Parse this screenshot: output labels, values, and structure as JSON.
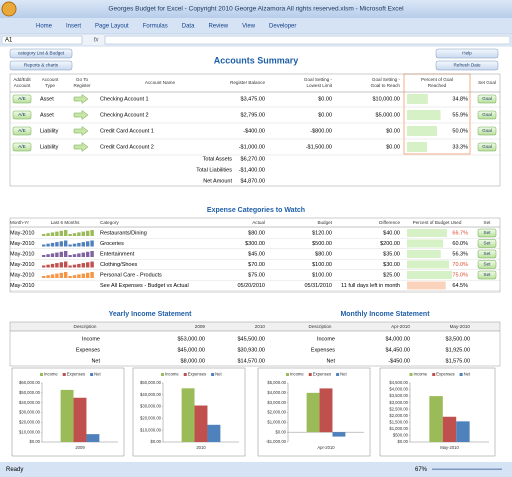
{
  "window_title": "Georges Budget for Excel - Copyright 2010  George Alzamora  All rights reserved.xlsm - Microsoft Excel",
  "tabs": [
    "Home",
    "Insert",
    "Page Layout",
    "Formulas",
    "Data",
    "Review",
    "View",
    "Developer"
  ],
  "name_box": "A1",
  "fx": "fx",
  "buttons": {
    "category_list": "category List & Budget",
    "reports": "Reports & charts",
    "help": "Help",
    "refresh": "Refresh Date"
  },
  "accounts": {
    "title": "Accounts Summary",
    "headers": [
      [
        "Add/Edit",
        "Account"
      ],
      [
        "Account",
        "Type"
      ],
      [
        "Go To",
        "Register"
      ],
      [
        "Account Name"
      ],
      [
        "Register Balance"
      ],
      [
        "Goal Setting -",
        "Lowest Limit"
      ],
      [
        "Goal Setting -",
        "Goal to Reach"
      ],
      [
        "Percent of Goal",
        "Reached"
      ],
      [
        "Set Goal"
      ]
    ],
    "rows": [
      {
        "edit": "A/E",
        "type": "Asset",
        "name": "Checking Account 1",
        "balance": "$3,475.00",
        "lowest": "$0.00",
        "goal": "$10,000.00",
        "pct": 34.8,
        "pct_label": "34.8%",
        "set": "Goal"
      },
      {
        "edit": "A/E",
        "type": "Asset",
        "name": "Checking Account 2",
        "balance": "$2,795.00",
        "lowest": "$0.00",
        "goal": "$5,000.00",
        "pct": 55.9,
        "pct_label": "55.9%",
        "set": "Goal"
      },
      {
        "edit": "A/E",
        "type": "Liability",
        "name": "Credit Card Account 1",
        "balance": "-$400.00",
        "lowest": "-$800.00",
        "goal": "$0.00",
        "pct": 50.0,
        "pct_label": "50.0%",
        "set": "Goal"
      },
      {
        "edit": "A/E",
        "type": "Liability",
        "name": "Credit Card Account 2",
        "balance": "-$1,000.00",
        "lowest": "-$1,500.00",
        "goal": "$0.00",
        "pct": 33.3,
        "pct_label": "33.3%",
        "set": "Goal"
      }
    ],
    "totals": [
      [
        "Total Assets",
        "$6,270.00"
      ],
      [
        "Total Liabilities",
        "-$1,400.00"
      ],
      [
        "Net Amount",
        "$4,870.00"
      ]
    ]
  },
  "expenses": {
    "title": "Expense Categories to Watch",
    "headers": [
      "Month-Yr",
      "Last 6 Months",
      "Category",
      "Actual",
      "Budget",
      "Difference",
      "Percent of Budget Used",
      "Set"
    ],
    "rows": [
      {
        "month": "May-2010",
        "category": "Restaurants/Dining",
        "actual": "$80.00",
        "budget": "$120.00",
        "difference": "$40.00",
        "pct": 66.7,
        "pct_label": "66.7%",
        "set": "Set"
      },
      {
        "month": "May-2010",
        "category": "Groceries",
        "actual": "$300.00",
        "budget": "$500.00",
        "difference": "$200.00",
        "pct": 60.0,
        "pct_label": "60.0%",
        "set": "Set"
      },
      {
        "month": "May-2010",
        "category": "Entertainment",
        "actual": "$45.00",
        "budget": "$80.00",
        "difference": "$35.00",
        "pct": 56.3,
        "pct_label": "56.3%",
        "set": "Set"
      },
      {
        "month": "May-2010",
        "category": "Clothing/Shoes",
        "actual": "$70.00",
        "budget": "$100.00",
        "difference": "$30.00",
        "pct": 70.0,
        "pct_label": "70.0%",
        "set": "Set"
      },
      {
        "month": "May-2010",
        "category": "Personal Care - Products",
        "actual": "$75.00",
        "budget": "$100.00",
        "difference": "$25.00",
        "pct": 75.0,
        "pct_label": "75.0%",
        "set": "Set"
      },
      {
        "month": "May-2010",
        "category": "See All Expenses - Budget vs Actual",
        "actual": "05/20/2010",
        "budget": "05/31/2010",
        "difference": "11 full days left in month",
        "pct": 64.5,
        "pct_label": "64.5%"
      }
    ]
  },
  "yearly": {
    "title": "Yearly Income Statement",
    "headers": [
      "Description",
      "2009",
      "2010"
    ],
    "rows": [
      [
        "Income",
        "$53,000.00",
        "$45,500.00"
      ],
      [
        "Expenses",
        "$45,000.00",
        "$30,930.00"
      ],
      [
        "Net",
        "$8,000.00",
        "$14,570.00"
      ]
    ]
  },
  "monthly": {
    "title": "Monthly Income Statement",
    "headers": [
      "Description",
      "Apr-2010",
      "May-2010"
    ],
    "rows": [
      [
        "Income",
        "$4,000.00",
        "$3,500.00"
      ],
      [
        "Expenses",
        "$4,450.00",
        "$1,925.00"
      ],
      [
        "Net",
        "-$450.00",
        "$1,575.00"
      ]
    ]
  },
  "status": {
    "ready": "Ready",
    "zoom": "67%"
  },
  "chart_data": [
    {
      "type": "bar",
      "categories": [
        "2009"
      ],
      "series": [
        {
          "name": "Income",
          "color": "#9bbb59",
          "values": [
            53000
          ]
        },
        {
          "name": "Expenses",
          "color": "#c0504d",
          "values": [
            45000
          ]
        },
        {
          "name": "Net",
          "color": "#4f81bd",
          "values": [
            8000
          ]
        }
      ],
      "ylim": [
        0,
        60000
      ],
      "yticks": [
        {
          "value": 0,
          "label": "$0.00"
        },
        {
          "value": 10000,
          "label": "$10,000.00"
        },
        {
          "value": 20000,
          "label": "$20,000.00"
        },
        {
          "value": 30000,
          "label": "$30,000.00"
        },
        {
          "value": 40000,
          "label": "$40,000.00"
        },
        {
          "value": 50000,
          "label": "$50,000.00"
        },
        {
          "value": 60000,
          "label": "$60,000.00"
        }
      ]
    },
    {
      "type": "bar",
      "categories": [
        "2010"
      ],
      "series": [
        {
          "name": "Income",
          "color": "#9bbb59",
          "values": [
            45500
          ]
        },
        {
          "name": "Expenses",
          "color": "#c0504d",
          "values": [
            30930
          ]
        },
        {
          "name": "Net",
          "color": "#4f81bd",
          "values": [
            14570
          ]
        }
      ],
      "ylim": [
        0,
        50000
      ],
      "yticks": [
        {
          "value": 0,
          "label": "$0.00"
        },
        {
          "value": 10000,
          "label": "$10,000.00"
        },
        {
          "value": 20000,
          "label": "$20,000.00"
        },
        {
          "value": 30000,
          "label": "$30,000.00"
        },
        {
          "value": 40000,
          "label": "$40,000.00"
        },
        {
          "value": 50000,
          "label": "$50,000.00"
        }
      ]
    },
    {
      "type": "bar",
      "categories": [
        "Apr-2010"
      ],
      "series": [
        {
          "name": "Income",
          "color": "#9bbb59",
          "values": [
            4000
          ]
        },
        {
          "name": "Expenses",
          "color": "#c0504d",
          "values": [
            4450
          ]
        },
        {
          "name": "Net",
          "color": "#4f81bd",
          "values": [
            -450
          ]
        }
      ],
      "ylim": [
        -1000,
        5000
      ],
      "yticks": [
        {
          "value": -1000,
          "label": "-$1,000.00"
        },
        {
          "value": 0,
          "label": "$0.00"
        },
        {
          "value": 1000,
          "label": "$1,000.00"
        },
        {
          "value": 2000,
          "label": "$2,000.00"
        },
        {
          "value": 3000,
          "label": "$3,000.00"
        },
        {
          "value": 4000,
          "label": "$4,000.00"
        },
        {
          "value": 5000,
          "label": "$5,000.00"
        }
      ]
    },
    {
      "type": "bar",
      "categories": [
        "May-2010"
      ],
      "series": [
        {
          "name": "Income",
          "color": "#9bbb59",
          "values": [
            3500
          ]
        },
        {
          "name": "Expenses",
          "color": "#c0504d",
          "values": [
            1925
          ]
        },
        {
          "name": "Net",
          "color": "#4f81bd",
          "values": [
            1575
          ]
        }
      ],
      "ylim": [
        0,
        4500
      ],
      "yticks": [
        {
          "value": 0,
          "label": "$0.00"
        },
        {
          "value": 500,
          "label": "$500.00"
        },
        {
          "value": 1000,
          "label": "$1,000.00"
        },
        {
          "value": 1500,
          "label": "$1,500.00"
        },
        {
          "value": 2000,
          "label": "$2,000.00"
        },
        {
          "value": 2500,
          "label": "$2,500.00"
        },
        {
          "value": 3000,
          "label": "$3,000.00"
        },
        {
          "value": 3500,
          "label": "$3,500.00"
        },
        {
          "value": 4000,
          "label": "$4,000.00"
        },
        {
          "value": 4500,
          "label": "$4,500.00"
        }
      ]
    }
  ]
}
